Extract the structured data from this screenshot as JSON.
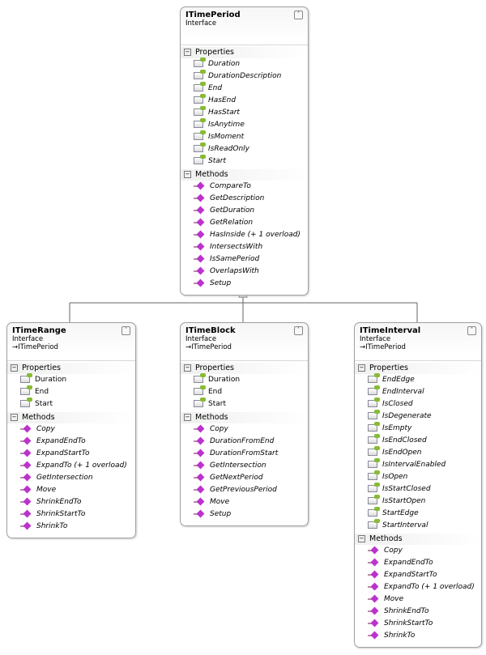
{
  "sections": {
    "properties": "Properties",
    "methods": "Methods"
  },
  "boxes": [
    {
      "id": "itimeperiod",
      "title": "ITimePeriod",
      "kind": "Interface",
      "base": "",
      "italicProps": true,
      "properties": [
        "Duration",
        "DurationDescription",
        "End",
        "HasEnd",
        "HasStart",
        "IsAnytime",
        "IsMoment",
        "IsReadOnly",
        "Start"
      ],
      "methods": [
        "CompareTo",
        "GetDescription",
        "GetDuration",
        "GetRelation",
        "HasInside (+ 1 overload)",
        "IntersectsWith",
        "IsSamePeriod",
        "OverlapsWith",
        "Setup"
      ]
    },
    {
      "id": "itimerange",
      "title": "ITimeRange",
      "kind": "Interface",
      "base": "ITimePeriod",
      "italicProps": false,
      "properties": [
        "Duration",
        "End",
        "Start"
      ],
      "methods": [
        "Copy",
        "ExpandEndTo",
        "ExpandStartTo",
        "ExpandTo (+ 1 overload)",
        "GetIntersection",
        "Move",
        "ShrinkEndTo",
        "ShrinkStartTo",
        "ShrinkTo"
      ]
    },
    {
      "id": "itimeblock",
      "title": "ITimeBlock",
      "kind": "Interface",
      "base": "ITimePeriod",
      "italicProps": false,
      "properties": [
        "Duration",
        "End",
        "Start"
      ],
      "methods": [
        "Copy",
        "DurationFromEnd",
        "DurationFromStart",
        "GetIntersection",
        "GetNextPeriod",
        "GetPreviousPeriod",
        "Move",
        "Setup"
      ]
    },
    {
      "id": "itimeinterval",
      "title": "ITimeInterval",
      "kind": "Interface",
      "base": "ITimePeriod",
      "italicProps": true,
      "properties": [
        "EndEdge",
        "EndInterval",
        "IsClosed",
        "IsDegenerate",
        "IsEmpty",
        "IsEndClosed",
        "IsEndOpen",
        "IsIntervalEnabled",
        "IsOpen",
        "IsStartClosed",
        "IsStartOpen",
        "StartEdge",
        "StartInterval"
      ],
      "methods": [
        "Copy",
        "ExpandEndTo",
        "ExpandStartTo",
        "ExpandTo (+ 1 overload)",
        "Move",
        "ShrinkEndTo",
        "ShrinkStartTo",
        "ShrinkTo"
      ]
    }
  ]
}
